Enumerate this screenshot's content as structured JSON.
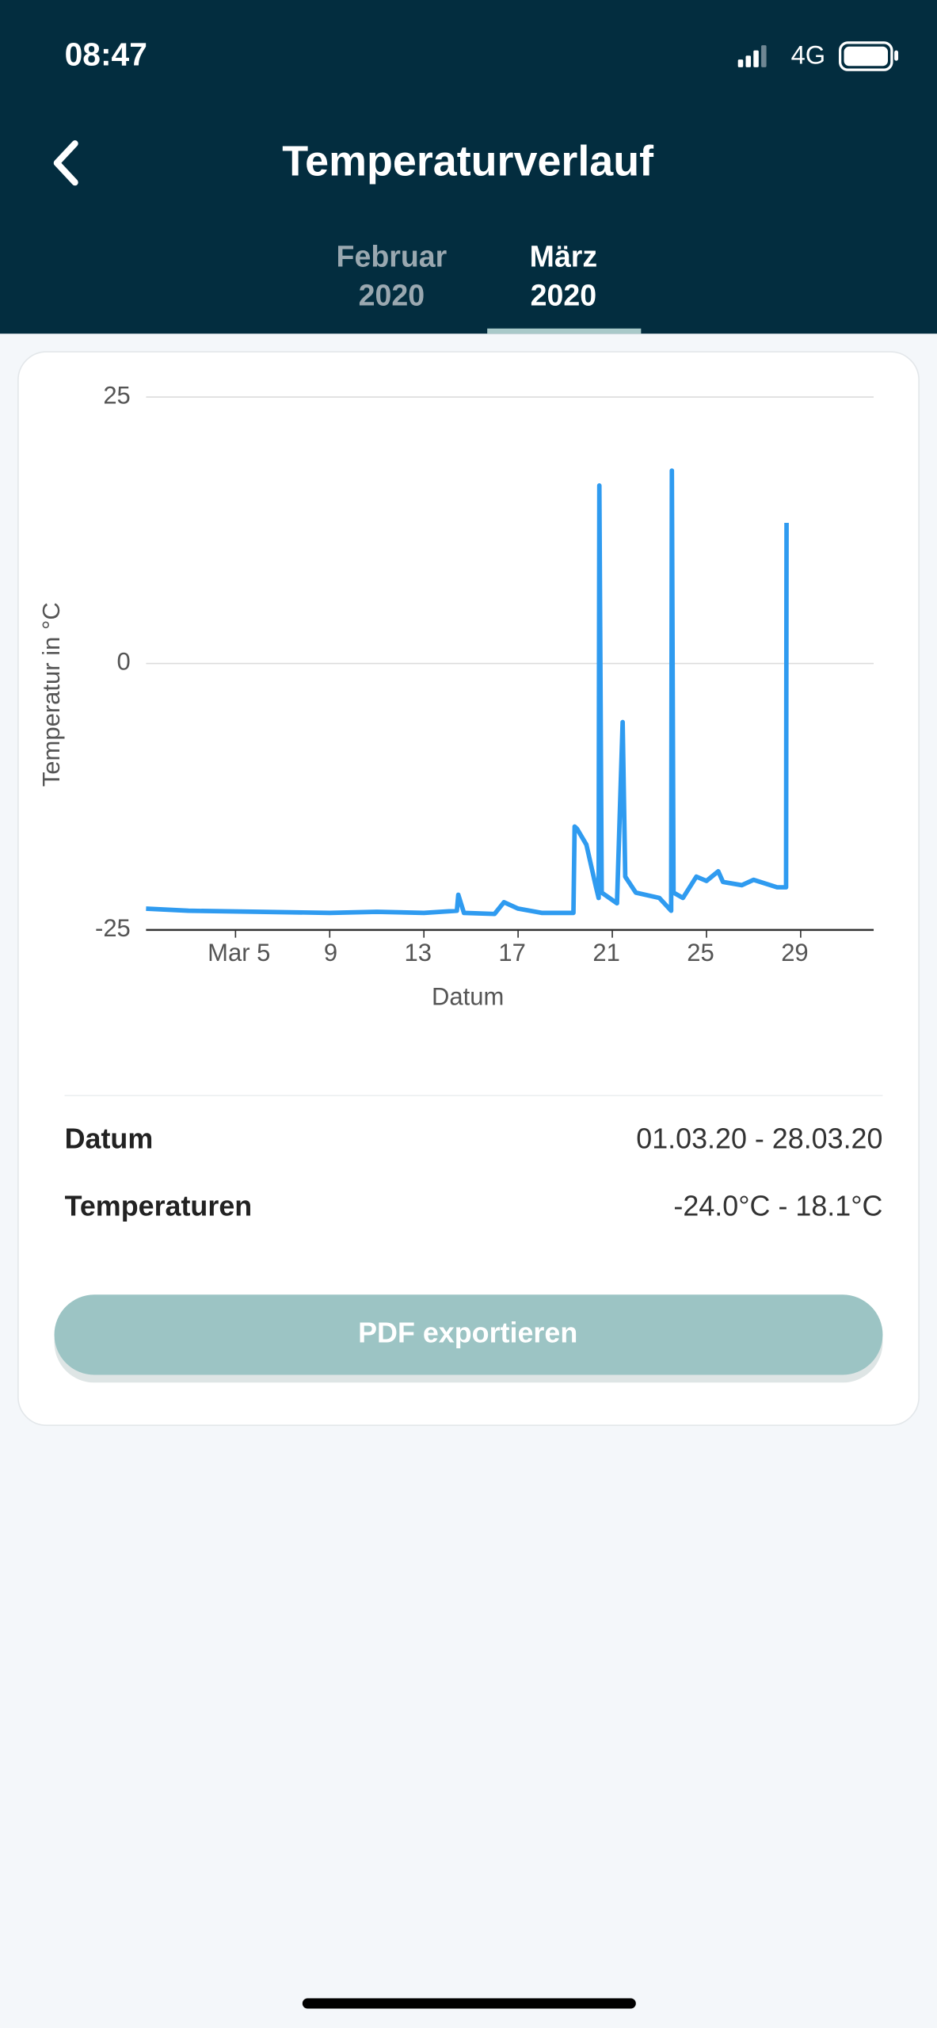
{
  "status_bar": {
    "time": "08:47",
    "network": "4G"
  },
  "header": {
    "title": "Temperaturverlauf",
    "tabs": [
      {
        "month": "Februar",
        "year": "2020"
      },
      {
        "month": "März",
        "year": "2020"
      }
    ]
  },
  "chart_data": {
    "type": "line",
    "ylabel": "Temperatur in °C",
    "xlabel": "Datum",
    "x": [
      1.2,
      3,
      6,
      9,
      11,
      13,
      14.4,
      14.46,
      14.7,
      16,
      16.4,
      17,
      18,
      19.35,
      19.4,
      19.5,
      19.9,
      20.3,
      20.42,
      20.45,
      20.55,
      21.2,
      21.44,
      21.55,
      22,
      23,
      23.5,
      23.53,
      23.6,
      24,
      24.57,
      25,
      25.5,
      25.7,
      26.5,
      27,
      28,
      28.38,
      28.4
    ],
    "series": [
      {
        "name": "Temperatur",
        "color": "#2f9bf0",
        "values": [
          -23.0,
          -23.2,
          -23.3,
          -23.4,
          -23.3,
          -23.4,
          -23.2,
          -21.7,
          -23.4,
          -23.5,
          -22.4,
          -23.0,
          -23.4,
          -23.4,
          -15.3,
          -15.5,
          -17.0,
          -20.9,
          -22.0,
          16.7,
          -21.5,
          -22.5,
          -5.5,
          -20.0,
          -21.5,
          -22.0,
          -23.2,
          18.1,
          -21.5,
          -22.0,
          -20.0,
          -20.4,
          -19.5,
          -20.5,
          -20.8,
          -20.3,
          -21.0,
          -21.0,
          13.2
        ]
      }
    ],
    "xlim": [
      1.2,
      32.1
    ],
    "xticks": [
      {
        "value": 5,
        "label": "Mar 5"
      },
      9,
      13,
      17,
      21,
      25,
      29
    ],
    "ylim": [
      -25,
      25
    ],
    "yticks": [
      25,
      0,
      -25
    ],
    "grid": true
  },
  "summary": {
    "rows": [
      {
        "label": "Datum",
        "value": "01.03.20 - 28.03.20"
      },
      {
        "label": "Temperaturen",
        "value": "-24.0°C - 18.1°C"
      }
    ]
  },
  "button": {
    "label": "PDF exportieren"
  }
}
